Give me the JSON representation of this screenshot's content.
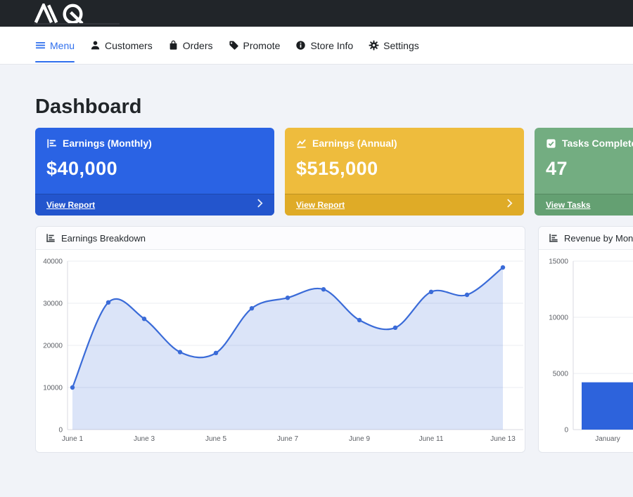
{
  "brand": {
    "name": "MQ"
  },
  "nav": {
    "items": [
      {
        "label": "Menu",
        "icon": "hamburger-icon",
        "active": true
      },
      {
        "label": "Customers",
        "icon": "person-icon",
        "active": false
      },
      {
        "label": "Orders",
        "icon": "bag-icon",
        "active": false
      },
      {
        "label": "Promote",
        "icon": "tag-icon",
        "active": false
      },
      {
        "label": "Store Info",
        "icon": "info-circle-icon",
        "active": false
      },
      {
        "label": "Settings",
        "icon": "gear-icon",
        "active": false
      }
    ]
  },
  "page": {
    "title": "Dashboard"
  },
  "stat_cards": [
    {
      "label": "Earnings (Monthly)",
      "value": "$40,000",
      "link": "View Report",
      "icon": "bar-chart-icon",
      "color": "#2a63e4",
      "footer_color": "#2355cd"
    },
    {
      "label": "Earnings (Annual)",
      "value": "$515,000",
      "link": "View Report",
      "icon": "line-chart-icon",
      "color": "#eebc3d",
      "footer_color": "#dfab27"
    },
    {
      "label": "Tasks Completed",
      "value": "47",
      "link": "View Tasks",
      "icon": "check-square-icon",
      "color": "#73ad81",
      "footer_color": "#64a072"
    }
  ],
  "chart_data": [
    {
      "type": "line",
      "title": "Earnings Breakdown",
      "categories": [
        "June 1",
        "June 2",
        "June 3",
        "June 4",
        "June 5",
        "June 6",
        "June 7",
        "June 8",
        "June 9",
        "June 10",
        "June 11",
        "June 12",
        "June 13"
      ],
      "values": [
        10000,
        30200,
        26300,
        18400,
        18200,
        28800,
        31300,
        33300,
        26000,
        24200,
        32700,
        32000,
        38500
      ],
      "ylim": [
        0,
        40000
      ],
      "yticks": [
        0,
        10000,
        20000,
        30000,
        40000
      ],
      "x_tick_step": 2,
      "grid": true,
      "legend": false,
      "line_color": "#3a6bd8",
      "fill_color": "rgba(58,107,216,0.18)",
      "smooth": true
    },
    {
      "type": "bar",
      "title": "Revenue by Month",
      "categories": [
        "January"
      ],
      "values": [
        4215
      ],
      "ylim": [
        0,
        15000
      ],
      "yticks": [
        0,
        5000,
        10000,
        15000
      ],
      "grid": true,
      "legend": false,
      "bar_color": "#2d63dc"
    }
  ],
  "colors": {
    "topbar_bg": "#212529",
    "page_bg": "#f1f3f8",
    "nav_active": "#2f6fed",
    "primary_blue": "#2a63e4",
    "warning_yellow": "#eebc3d",
    "success_green": "#73ad81"
  }
}
